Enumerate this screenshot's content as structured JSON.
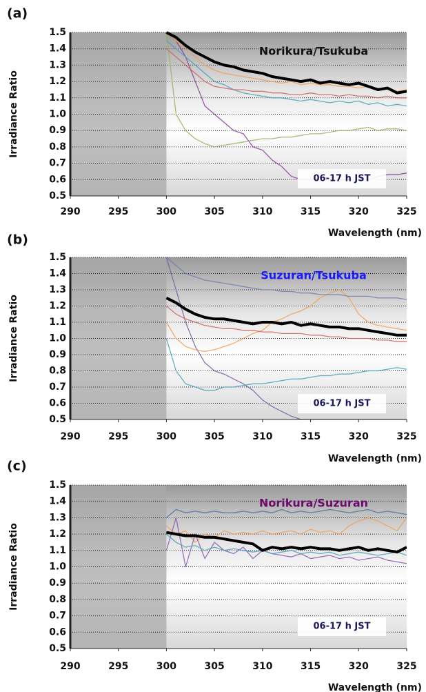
{
  "chart_data": [
    {
      "type": "line",
      "panel_label": "(a)",
      "title": "Norikura/Tsukuba",
      "title_color": "#111111",
      "annotation": "06-17 h JST",
      "xlabel": "Wavelength (nm)",
      "ylabel": "Irradiance Ratio",
      "xlim": [
        290,
        325
      ],
      "ylim": [
        0.5,
        1.5
      ],
      "xticks": [
        290,
        295,
        300,
        305,
        310,
        315,
        320,
        325
      ],
      "yticks": [
        0.5,
        0.6,
        0.7,
        0.8,
        0.9,
        {
          "value": 1,
          "label": "1.0"
        },
        1.1,
        1.2,
        1.3,
        1.4,
        1.5
      ],
      "grid": true,
      "x": [
        300,
        301,
        302,
        303,
        304,
        305,
        306,
        307,
        308,
        309,
        310,
        311,
        312,
        313,
        314,
        315,
        316,
        317,
        318,
        319,
        320,
        321,
        322,
        323,
        324,
        325
      ],
      "series": [
        {
          "color": "#8a3c9a",
          "line_width": 1.3,
          "values": [
            1.5,
            1.45,
            1.35,
            1.2,
            1.05,
            1.0,
            0.95,
            0.9,
            0.88,
            0.8,
            0.78,
            0.72,
            0.68,
            0.62,
            0.6,
            0.6,
            0.6,
            0.6,
            0.6,
            0.6,
            0.6,
            0.6,
            0.62,
            0.63,
            0.63,
            0.64
          ]
        },
        {
          "color": "#9cb060",
          "line_width": 1.3,
          "values": [
            1.5,
            1.0,
            0.9,
            0.85,
            0.82,
            0.8,
            0.81,
            0.82,
            0.83,
            0.84,
            0.85,
            0.85,
            0.86,
            0.86,
            0.87,
            0.88,
            0.88,
            0.89,
            0.9,
            0.9,
            0.91,
            0.92,
            0.9,
            0.91,
            0.91,
            0.9
          ]
        },
        {
          "color": "#4aa0b8",
          "line_width": 1.3,
          "values": [
            1.45,
            1.4,
            1.35,
            1.3,
            1.25,
            1.2,
            1.18,
            1.15,
            1.13,
            1.12,
            1.11,
            1.1,
            1.1,
            1.09,
            1.08,
            1.09,
            1.08,
            1.07,
            1.08,
            1.07,
            1.08,
            1.06,
            1.07,
            1.05,
            1.06,
            1.05
          ]
        },
        {
          "color": "#f0a050",
          "line_width": 1.3,
          "values": [
            1.5,
            1.45,
            1.4,
            1.35,
            1.3,
            1.27,
            1.25,
            1.24,
            1.23,
            1.22,
            1.21,
            1.2,
            1.19,
            1.2,
            1.18,
            1.19,
            1.18,
            1.18,
            1.17,
            1.17,
            1.16,
            1.17,
            1.16,
            1.15,
            1.14,
            1.15
          ]
        },
        {
          "color": "#d06060",
          "line_width": 1.3,
          "values": [
            1.4,
            1.35,
            1.3,
            1.25,
            1.2,
            1.17,
            1.16,
            1.15,
            1.15,
            1.14,
            1.14,
            1.13,
            1.13,
            1.12,
            1.12,
            1.13,
            1.12,
            1.12,
            1.11,
            1.12,
            1.11,
            1.11,
            1.1,
            1.11,
            1.1,
            1.1
          ]
        },
        {
          "color": "#000000",
          "line_width": 4,
          "values": [
            1.5,
            1.47,
            1.42,
            1.38,
            1.35,
            1.32,
            1.3,
            1.29,
            1.27,
            1.26,
            1.25,
            1.23,
            1.22,
            1.21,
            1.2,
            1.21,
            1.19,
            1.2,
            1.19,
            1.18,
            1.19,
            1.17,
            1.15,
            1.16,
            1.13,
            1.14
          ]
        }
      ]
    },
    {
      "type": "line",
      "panel_label": "(b)",
      "title": "Suzuran/Tsukuba",
      "title_color": "#1a1aff",
      "annotation": "06-17 h JST",
      "xlabel": "Wavelength (nm)",
      "ylabel": "Irradiance Ratio",
      "xlim": [
        290,
        325
      ],
      "ylim": [
        0.5,
        1.5
      ],
      "xticks": [
        290,
        295,
        300,
        305,
        310,
        315,
        320,
        325
      ],
      "yticks": [
        0.5,
        0.6,
        0.7,
        0.8,
        0.9,
        {
          "value": 1,
          "label": "1.0"
        },
        1.1,
        1.2,
        1.3,
        1.4,
        1.5
      ],
      "grid": true,
      "x": [
        300,
        301,
        302,
        303,
        304,
        305,
        306,
        307,
        308,
        309,
        310,
        311,
        312,
        313,
        314,
        315,
        316,
        317,
        318,
        319,
        320,
        321,
        322,
        323,
        324,
        325
      ],
      "series": [
        {
          "color": "#7a5aa0",
          "line_width": 1.3,
          "values": [
            1.5,
            1.3,
            1.1,
            0.95,
            0.85,
            0.8,
            0.78,
            0.75,
            0.72,
            0.68,
            0.62,
            0.58,
            0.55,
            0.52,
            0.5,
            0.5,
            0.5,
            0.5,
            0.5,
            0.5,
            0.5,
            0.5,
            0.5,
            0.5,
            0.5,
            0.5
          ]
        },
        {
          "color": "#4aa0b8",
          "line_width": 1.3,
          "values": [
            1.0,
            0.8,
            0.72,
            0.7,
            0.68,
            0.68,
            0.7,
            0.7,
            0.71,
            0.72,
            0.72,
            0.73,
            0.74,
            0.75,
            0.75,
            0.76,
            0.77,
            0.77,
            0.78,
            0.78,
            0.79,
            0.8,
            0.8,
            0.81,
            0.82,
            0.81
          ]
        },
        {
          "color": "#f0a050",
          "line_width": 1.3,
          "values": [
            1.1,
            1.0,
            0.95,
            0.93,
            0.92,
            0.93,
            0.95,
            0.97,
            1.0,
            1.03,
            1.05,
            1.1,
            1.12,
            1.15,
            1.17,
            1.2,
            1.25,
            1.28,
            1.3,
            1.25,
            1.15,
            1.1,
            1.08,
            1.07,
            1.06,
            1.05
          ]
        },
        {
          "color": "#d06060",
          "line_width": 1.3,
          "values": [
            1.2,
            1.15,
            1.12,
            1.1,
            1.08,
            1.07,
            1.06,
            1.06,
            1.05,
            1.05,
            1.04,
            1.04,
            1.03,
            1.03,
            1.03,
            1.02,
            1.02,
            1.01,
            1.01,
            1.0,
            1.0,
            1.0,
            0.99,
            0.99,
            0.98,
            0.98
          ]
        },
        {
          "color": "#7080b0",
          "line_width": 1.3,
          "values": [
            1.5,
            1.45,
            1.4,
            1.38,
            1.36,
            1.35,
            1.34,
            1.33,
            1.32,
            1.31,
            1.3,
            1.3,
            1.29,
            1.29,
            1.28,
            1.28,
            1.27,
            1.27,
            1.27,
            1.26,
            1.26,
            1.26,
            1.25,
            1.25,
            1.25,
            1.24
          ]
        },
        {
          "color": "#000000",
          "line_width": 4,
          "values": [
            1.25,
            1.22,
            1.18,
            1.15,
            1.13,
            1.12,
            1.12,
            1.11,
            1.1,
            1.09,
            1.1,
            1.1,
            1.09,
            1.1,
            1.08,
            1.09,
            1.08,
            1.07,
            1.07,
            1.06,
            1.06,
            1.05,
            1.04,
            1.03,
            1.02,
            1.02
          ]
        }
      ]
    },
    {
      "type": "line",
      "panel_label": "(c)",
      "title": "Norikura/Suzuran",
      "title_color": "#6a0a6a",
      "annotation": "06-17 h JST",
      "xlabel": "Wavelength (nm)",
      "ylabel": "Irradiance Ratio",
      "xlim": [
        290,
        325
      ],
      "ylim": [
        0.5,
        1.5
      ],
      "xticks": [
        290,
        295,
        300,
        305,
        310,
        315,
        320,
        325
      ],
      "yticks": [
        0.5,
        0.6,
        0.7,
        0.8,
        0.9,
        {
          "value": 1,
          "label": "1.0"
        },
        1.1,
        1.2,
        1.3,
        1.4,
        1.5
      ],
      "grid": true,
      "x": [
        300,
        301,
        302,
        303,
        304,
        305,
        306,
        307,
        308,
        309,
        310,
        311,
        312,
        313,
        314,
        315,
        316,
        317,
        318,
        319,
        320,
        321,
        322,
        323,
        324,
        325
      ],
      "series": [
        {
          "color": "#5070a0",
          "line_width": 1.3,
          "values": [
            1.3,
            1.35,
            1.33,
            1.34,
            1.33,
            1.34,
            1.33,
            1.33,
            1.34,
            1.33,
            1.34,
            1.33,
            1.35,
            1.33,
            1.34,
            1.33,
            1.34,
            1.35,
            1.34,
            1.33,
            1.34,
            1.35,
            1.33,
            1.34,
            1.33,
            1.32
          ]
        },
        {
          "color": "#f0a050",
          "line_width": 1.3,
          "values": [
            1.25,
            1.2,
            1.22,
            1.15,
            1.2,
            1.18,
            1.22,
            1.2,
            1.21,
            1.2,
            1.22,
            1.2,
            1.21,
            1.22,
            1.2,
            1.23,
            1.21,
            1.22,
            1.2,
            1.25,
            1.28,
            1.3,
            1.28,
            1.25,
            1.22,
            1.3
          ]
        },
        {
          "color": "#8a5ab0",
          "line_width": 1.3,
          "values": [
            1.1,
            1.3,
            1.0,
            1.2,
            1.05,
            1.15,
            1.1,
            1.08,
            1.12,
            1.05,
            1.1,
            1.08,
            1.07,
            1.06,
            1.08,
            1.05,
            1.06,
            1.07,
            1.05,
            1.06,
            1.04,
            1.05,
            1.06,
            1.04,
            1.03,
            1.02
          ]
        },
        {
          "color": "#4aa0b8",
          "line_width": 1.3,
          "values": [
            1.2,
            1.15,
            1.12,
            1.13,
            1.1,
            1.12,
            1.1,
            1.11,
            1.1,
            1.09,
            1.1,
            1.08,
            1.09,
            1.1,
            1.08,
            1.09,
            1.08,
            1.09,
            1.07,
            1.08,
            1.09,
            1.08,
            1.07,
            1.08,
            1.09,
            1.07
          ]
        },
        {
          "color": "#000000",
          "line_width": 4,
          "values": [
            1.21,
            1.2,
            1.19,
            1.19,
            1.18,
            1.18,
            1.17,
            1.16,
            1.15,
            1.14,
            1.1,
            1.12,
            1.11,
            1.12,
            1.11,
            1.12,
            1.11,
            1.11,
            1.1,
            1.11,
            1.12,
            1.1,
            1.11,
            1.1,
            1.09,
            1.12
          ]
        }
      ]
    }
  ]
}
